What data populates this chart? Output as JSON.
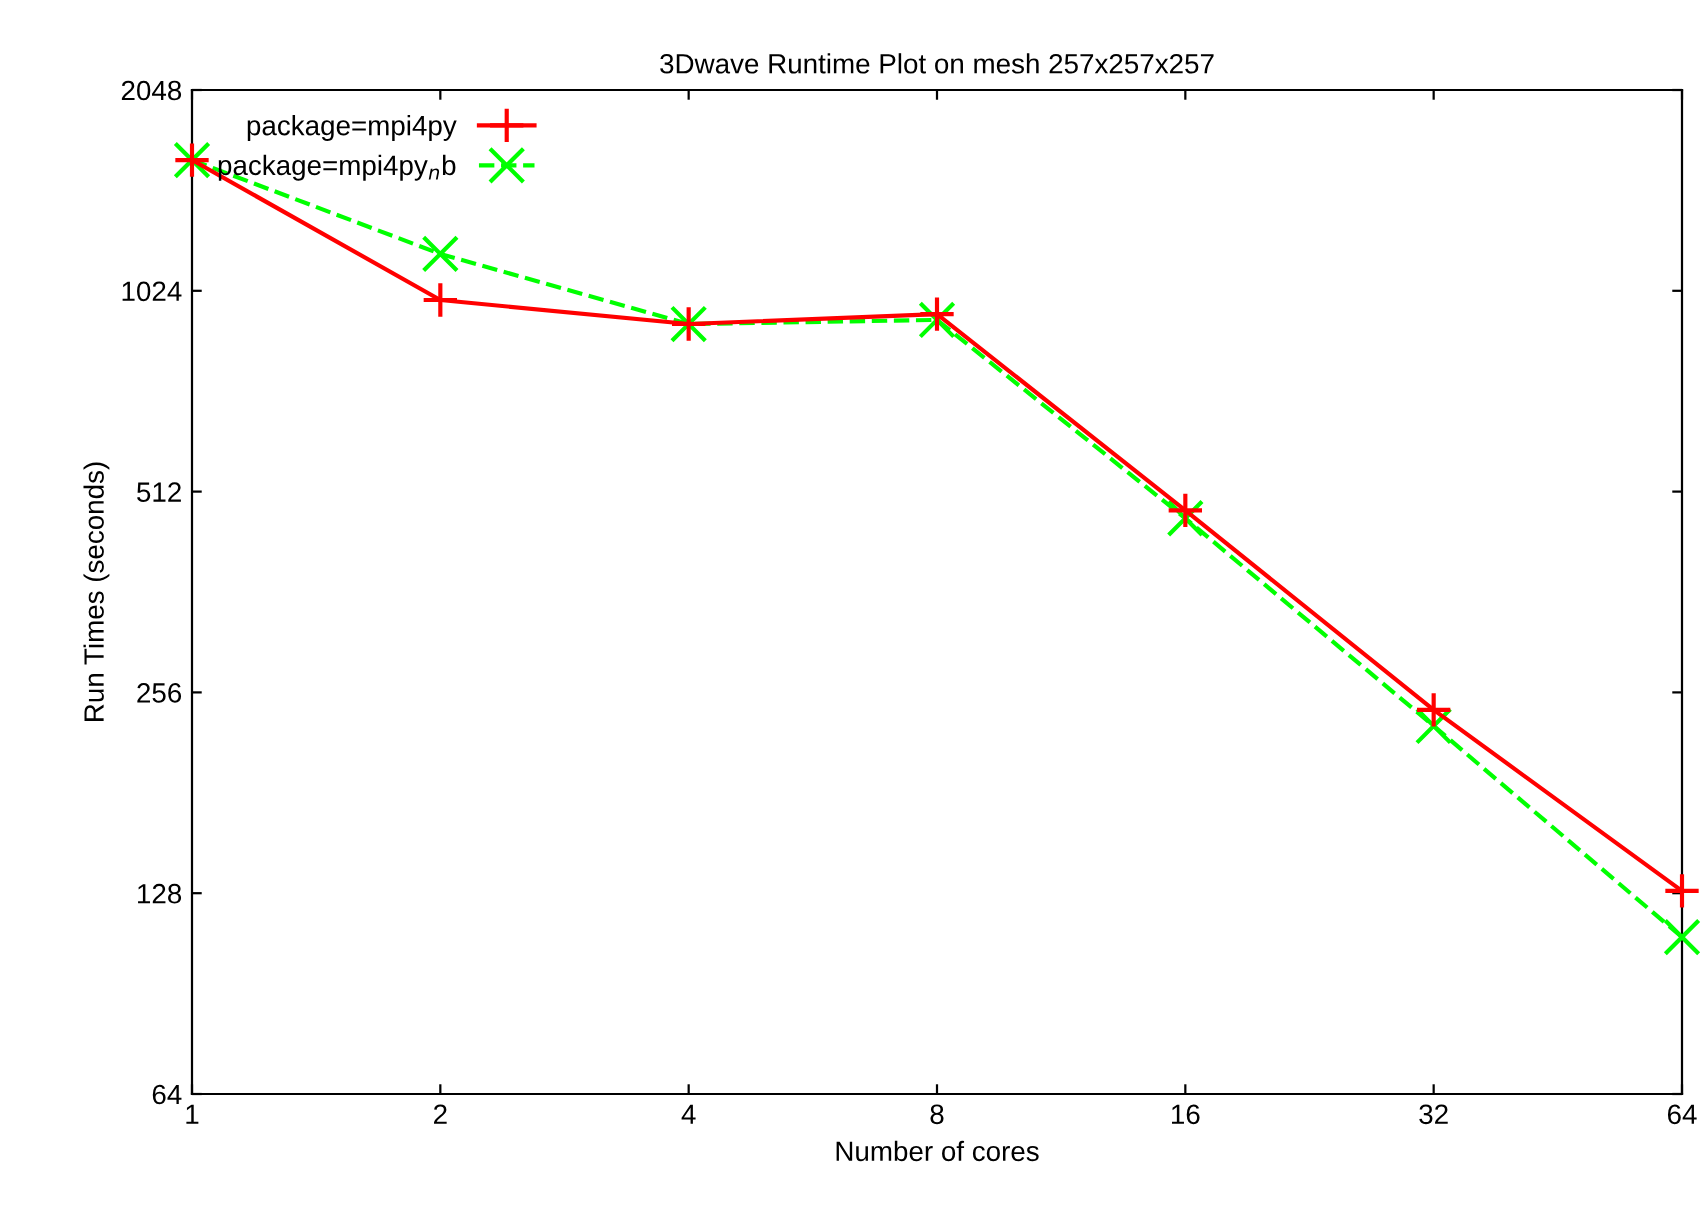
{
  "chart_data": {
    "type": "line",
    "title": "3Dwave Runtime Plot on mesh 257x257x257",
    "xlabel": "Number of cores",
    "ylabel": "Run Times (seconds)",
    "x": [
      1,
      2,
      4,
      8,
      16,
      32,
      64
    ],
    "series": [
      {
        "name": "package=mpi4py",
        "color": "#ff0000",
        "marker": "plus",
        "line_style": "solid",
        "values": [
          1608,
          992,
          913,
          945,
          480,
          241,
          129
        ]
      },
      {
        "name": "package=mpi4py$_{n}$b",
        "color": "#00ff00",
        "marker": "cross",
        "line_style": "dashed",
        "values": [
          1608,
          1163,
          913,
          926,
          467,
          228,
          110
        ]
      }
    ],
    "log": "xy",
    "xlim": [
      1,
      64
    ],
    "xticks": [
      1,
      2,
      4,
      8,
      16,
      32,
      64
    ],
    "ylim": [
      64,
      2048
    ],
    "yticks": [
      64,
      128,
      256,
      512,
      1024,
      2048
    ],
    "grid": false,
    "legend": "top left"
  }
}
